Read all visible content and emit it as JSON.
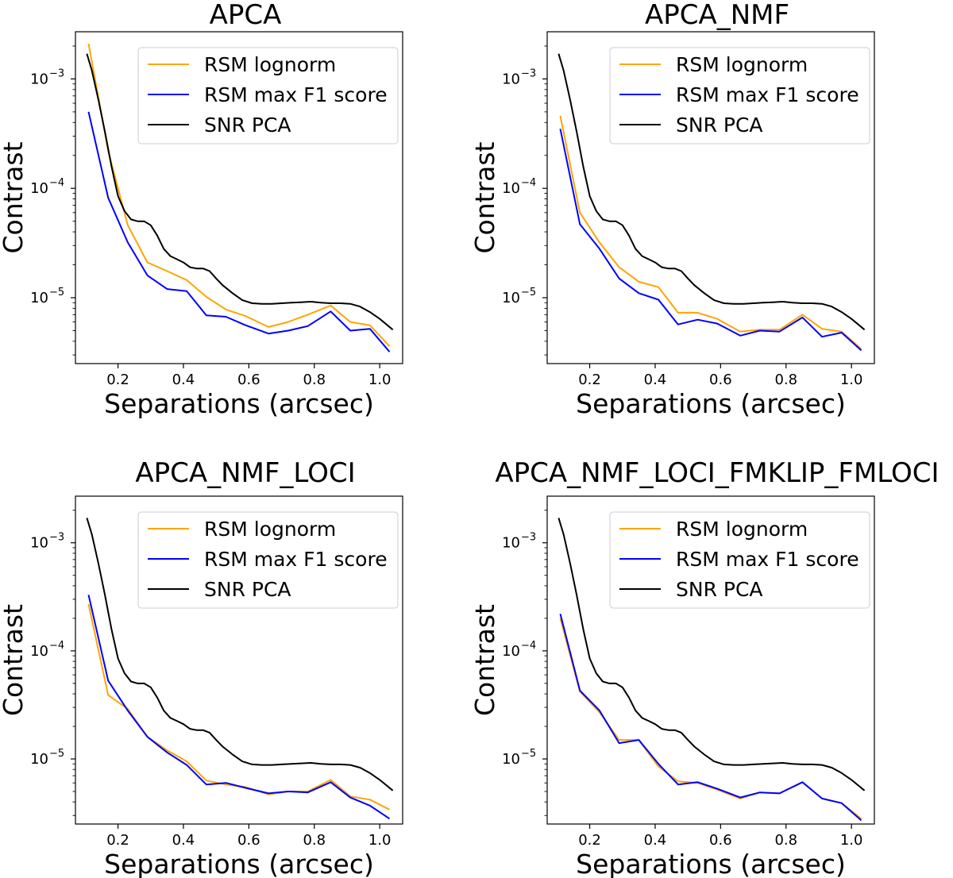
{
  "chart_data": [
    {
      "type": "line",
      "title": "APCA",
      "xlabel": "Separations (arcsec)",
      "ylabel": "Contrast",
      "xlim": [
        0.07,
        1.07
      ],
      "ylim": [
        2.5e-06,
        0.0027
      ],
      "yscale": "log",
      "xticks": [
        0.2,
        0.4,
        0.6,
        0.8,
        1.0
      ],
      "xtick_labels": [
        "0.2",
        "0.4",
        "0.6",
        "0.8",
        "1.0"
      ],
      "yticks": [
        0.001,
        0.0001,
        1e-05
      ],
      "ytick_labels": [
        {
          "base": "10",
          "exp": "−3"
        },
        {
          "base": "10",
          "exp": "−4"
        },
        {
          "base": "10",
          "exp": "−5"
        }
      ],
      "legend_position": "top-right",
      "series": [
        {
          "name": "RSM lognorm",
          "color": "#ffa500",
          "x": [
            0.11,
            0.17,
            0.23,
            0.29,
            0.35,
            0.41,
            0.47,
            0.53,
            0.59,
            0.66,
            0.72,
            0.78,
            0.85,
            0.91,
            0.97,
            1.03
          ],
          "y": [
            0.0021,
            0.00022,
            4.6e-05,
            2.1e-05,
            1.75e-05,
            1.45e-05,
            1.02e-05,
            7.8e-06,
            6.8e-06,
            5.4e-06,
            6e-06,
            7e-06,
            8.5e-06,
            6e-06,
            5.6e-06,
            3.6e-06
          ]
        },
        {
          "name": "RSM max F1 score",
          "color": "#0000ff",
          "x": [
            0.11,
            0.17,
            0.23,
            0.29,
            0.35,
            0.41,
            0.47,
            0.53,
            0.59,
            0.66,
            0.72,
            0.78,
            0.85,
            0.91,
            0.97,
            1.03
          ],
          "y": [
            0.0005,
            8.2e-05,
            3.2e-05,
            1.6e-05,
            1.2e-05,
            1.15e-05,
            6.9e-06,
            6.7e-06,
            5.6e-06,
            4.7e-06,
            5e-06,
            5.5e-06,
            7.5e-06,
            5e-06,
            5.2e-06,
            3.2e-06
          ]
        },
        {
          "name": "SNR PCA",
          "color": "#000000",
          "x": [
            0.105,
            0.12,
            0.14,
            0.16,
            0.18,
            0.2,
            0.22,
            0.24,
            0.26,
            0.28,
            0.3,
            0.32,
            0.34,
            0.36,
            0.38,
            0.4,
            0.42,
            0.44,
            0.46,
            0.48,
            0.5,
            0.52,
            0.55,
            0.58,
            0.61,
            0.64,
            0.67,
            0.7,
            0.73,
            0.76,
            0.79,
            0.82,
            0.85,
            0.88,
            0.91,
            0.94,
            0.97,
            1.0,
            1.04
          ],
          "y": [
            0.0017,
            0.0012,
            0.00065,
            0.00033,
            0.00016,
            8.5e-05,
            6.2e-05,
            5.2e-05,
            5e-05,
            5e-05,
            4.6e-05,
            3.7e-05,
            2.8e-05,
            2.4e-05,
            2.25e-05,
            2.1e-05,
            1.9e-05,
            1.85e-05,
            1.85e-05,
            1.75e-05,
            1.5e-05,
            1.3e-05,
            1.1e-05,
            9.5e-06,
            8.9e-06,
            8.8e-06,
            8.8e-06,
            8.9e-06,
            9e-06,
            9.1e-06,
            9.2e-06,
            9e-06,
            8.9e-06,
            8.9e-06,
            8.8e-06,
            8.3e-06,
            7.4e-06,
            6.4e-06,
            5.1e-06
          ]
        }
      ]
    },
    {
      "type": "line",
      "title": "APCA_NMF",
      "xlabel": "Separations (arcsec)",
      "ylabel": "Contrast",
      "xlim": [
        0.07,
        1.07
      ],
      "ylim": [
        2.5e-06,
        0.0027
      ],
      "yscale": "log",
      "xticks": [
        0.2,
        0.4,
        0.6,
        0.8,
        1.0
      ],
      "xtick_labels": [
        "0.2",
        "0.4",
        "0.6",
        "0.8",
        "1.0"
      ],
      "yticks": [
        0.001,
        0.0001,
        1e-05
      ],
      "ytick_labels": [
        {
          "base": "10",
          "exp": "−3"
        },
        {
          "base": "10",
          "exp": "−4"
        },
        {
          "base": "10",
          "exp": "−5"
        }
      ],
      "legend_position": "top-right",
      "series": [
        {
          "name": "RSM lognorm",
          "color": "#ffa500",
          "x": [
            0.11,
            0.17,
            0.23,
            0.29,
            0.35,
            0.41,
            0.47,
            0.53,
            0.59,
            0.66,
            0.72,
            0.78,
            0.85,
            0.91,
            0.97,
            1.03
          ],
          "y": [
            0.00046,
            6e-05,
            3.2e-05,
            1.9e-05,
            1.4e-05,
            1.25e-05,
            7.3e-06,
            7.3e-06,
            6.4e-06,
            4.9e-06,
            5.1e-06,
            5.1e-06,
            7e-06,
            5.2e-06,
            4.9e-06,
            3.4e-06
          ]
        },
        {
          "name": "RSM max F1 score",
          "color": "#0000ff",
          "x": [
            0.11,
            0.17,
            0.23,
            0.29,
            0.35,
            0.41,
            0.47,
            0.53,
            0.59,
            0.66,
            0.72,
            0.78,
            0.85,
            0.91,
            0.97,
            1.03
          ],
          "y": [
            0.00035,
            4.7e-05,
            2.8e-05,
            1.5e-05,
            1.1e-05,
            9.6e-06,
            5.7e-06,
            6.3e-06,
            5.8e-06,
            4.5e-06,
            5e-06,
            4.9e-06,
            6.6e-06,
            4.4e-06,
            4.8e-06,
            3.3e-06
          ]
        },
        {
          "name": "SNR PCA",
          "color": "#000000",
          "x": [
            0.105,
            0.12,
            0.14,
            0.16,
            0.18,
            0.2,
            0.22,
            0.24,
            0.26,
            0.28,
            0.3,
            0.32,
            0.34,
            0.36,
            0.38,
            0.4,
            0.42,
            0.44,
            0.46,
            0.48,
            0.5,
            0.52,
            0.55,
            0.58,
            0.61,
            0.64,
            0.67,
            0.7,
            0.73,
            0.76,
            0.79,
            0.82,
            0.85,
            0.88,
            0.91,
            0.94,
            0.97,
            1.0,
            1.04
          ],
          "y": [
            0.0017,
            0.0012,
            0.00065,
            0.00033,
            0.00016,
            8.5e-05,
            6.2e-05,
            5.2e-05,
            5e-05,
            5e-05,
            4.6e-05,
            3.7e-05,
            2.8e-05,
            2.4e-05,
            2.25e-05,
            2.1e-05,
            1.9e-05,
            1.85e-05,
            1.85e-05,
            1.75e-05,
            1.5e-05,
            1.3e-05,
            1.1e-05,
            9.5e-06,
            8.9e-06,
            8.8e-06,
            8.8e-06,
            8.9e-06,
            9e-06,
            9.1e-06,
            9.2e-06,
            9e-06,
            8.9e-06,
            8.9e-06,
            8.8e-06,
            8.3e-06,
            7.4e-06,
            6.4e-06,
            5.1e-06
          ]
        }
      ]
    },
    {
      "type": "line",
      "title": "APCA_NMF_LOCI",
      "xlabel": "Separations (arcsec)",
      "ylabel": "Contrast",
      "xlim": [
        0.07,
        1.07
      ],
      "ylim": [
        2.5e-06,
        0.0027
      ],
      "yscale": "log",
      "xticks": [
        0.2,
        0.4,
        0.6,
        0.8,
        1.0
      ],
      "xtick_labels": [
        "0.2",
        "0.4",
        "0.6",
        "0.8",
        "1.0"
      ],
      "yticks": [
        0.001,
        0.0001,
        1e-05
      ],
      "ytick_labels": [
        {
          "base": "10",
          "exp": "−3"
        },
        {
          "base": "10",
          "exp": "−4"
        },
        {
          "base": "10",
          "exp": "−5"
        }
      ],
      "legend_position": "top-right",
      "series": [
        {
          "name": "RSM lognorm",
          "color": "#ffa500",
          "x": [
            0.11,
            0.17,
            0.23,
            0.29,
            0.35,
            0.41,
            0.47,
            0.53,
            0.59,
            0.66,
            0.72,
            0.78,
            0.85,
            0.91,
            0.97,
            1.03
          ],
          "y": [
            0.00027,
            3.9e-05,
            2.9e-05,
            1.6e-05,
            1.2e-05,
            9.5e-06,
            6.3e-06,
            5.8e-06,
            5.5e-06,
            4.7e-06,
            5e-06,
            5e-06,
            6.4e-06,
            4.5e-06,
            4.2e-06,
            3.4e-06
          ]
        },
        {
          "name": "RSM max F1 score",
          "color": "#0000ff",
          "x": [
            0.11,
            0.17,
            0.23,
            0.29,
            0.35,
            0.41,
            0.47,
            0.53,
            0.59,
            0.66,
            0.72,
            0.78,
            0.85,
            0.91,
            0.97,
            1.03
          ],
          "y": [
            0.00033,
            5.3e-05,
            2.8e-05,
            1.6e-05,
            1.15e-05,
            8.8e-06,
            5.8e-06,
            6e-06,
            5.4e-06,
            4.8e-06,
            5e-06,
            4.9e-06,
            6.1e-06,
            4.4e-06,
            3.7e-06,
            2.8e-06
          ]
        },
        {
          "name": "SNR PCA",
          "color": "#000000",
          "x": [
            0.105,
            0.12,
            0.14,
            0.16,
            0.18,
            0.2,
            0.22,
            0.24,
            0.26,
            0.28,
            0.3,
            0.32,
            0.34,
            0.36,
            0.38,
            0.4,
            0.42,
            0.44,
            0.46,
            0.48,
            0.5,
            0.52,
            0.55,
            0.58,
            0.61,
            0.64,
            0.67,
            0.7,
            0.73,
            0.76,
            0.79,
            0.82,
            0.85,
            0.88,
            0.91,
            0.94,
            0.97,
            1.0,
            1.04
          ],
          "y": [
            0.0017,
            0.0012,
            0.00065,
            0.00033,
            0.00016,
            8.5e-05,
            6.2e-05,
            5.2e-05,
            5e-05,
            5e-05,
            4.6e-05,
            3.7e-05,
            2.8e-05,
            2.4e-05,
            2.25e-05,
            2.1e-05,
            1.9e-05,
            1.85e-05,
            1.85e-05,
            1.75e-05,
            1.5e-05,
            1.3e-05,
            1.1e-05,
            9.5e-06,
            8.9e-06,
            8.8e-06,
            8.8e-06,
            8.9e-06,
            9e-06,
            9.1e-06,
            9.2e-06,
            9e-06,
            8.9e-06,
            8.9e-06,
            8.8e-06,
            8.3e-06,
            7.4e-06,
            6.4e-06,
            5.1e-06
          ]
        }
      ]
    },
    {
      "type": "line",
      "title": "APCA_NMF_LOCI_FMKLIP_FMLOCI",
      "xlabel": "Separations (arcsec)",
      "ylabel": "Contrast",
      "xlim": [
        0.07,
        1.07
      ],
      "ylim": [
        2.5e-06,
        0.0027
      ],
      "yscale": "log",
      "xticks": [
        0.2,
        0.4,
        0.6,
        0.8,
        1.0
      ],
      "xtick_labels": [
        "0.2",
        "0.4",
        "0.6",
        "0.8",
        "1.0"
      ],
      "yticks": [
        0.001,
        0.0001,
        1e-05
      ],
      "ytick_labels": [
        {
          "base": "10",
          "exp": "−3"
        },
        {
          "base": "10",
          "exp": "−4"
        },
        {
          "base": "10",
          "exp": "−5"
        }
      ],
      "legend_position": "top-right",
      "series": [
        {
          "name": "RSM lognorm",
          "color": "#ffa500",
          "x": [
            0.11,
            0.17,
            0.23,
            0.29,
            0.35,
            0.41,
            0.47,
            0.53,
            0.59,
            0.66,
            0.72,
            0.78,
            0.85,
            0.91,
            0.97,
            1.03
          ],
          "y": [
            0.0002,
            4.2e-05,
            2.7e-05,
            1.5e-05,
            1.5e-05,
            8.5e-06,
            6.2e-06,
            6e-06,
            5.2e-06,
            4.3e-06,
            4.9e-06,
            4.8e-06,
            6.1e-06,
            4.3e-06,
            3.9e-06,
            2.8e-06
          ]
        },
        {
          "name": "RSM max F1 score",
          "color": "#0000ff",
          "x": [
            0.11,
            0.17,
            0.23,
            0.29,
            0.35,
            0.41,
            0.47,
            0.53,
            0.59,
            0.66,
            0.72,
            0.78,
            0.85,
            0.91,
            0.97,
            1.03
          ],
          "y": [
            0.00022,
            4.3e-05,
            2.8e-05,
            1.4e-05,
            1.5e-05,
            9e-06,
            5.8e-06,
            6.1e-06,
            5.3e-06,
            4.4e-06,
            4.9e-06,
            4.8e-06,
            6.1e-06,
            4.3e-06,
            3.9e-06,
            2.7e-06
          ]
        },
        {
          "name": "SNR PCA",
          "color": "#000000",
          "x": [
            0.105,
            0.12,
            0.14,
            0.16,
            0.18,
            0.2,
            0.22,
            0.24,
            0.26,
            0.28,
            0.3,
            0.32,
            0.34,
            0.36,
            0.38,
            0.4,
            0.42,
            0.44,
            0.46,
            0.48,
            0.5,
            0.52,
            0.55,
            0.58,
            0.61,
            0.64,
            0.67,
            0.7,
            0.73,
            0.76,
            0.79,
            0.82,
            0.85,
            0.88,
            0.91,
            0.94,
            0.97,
            1.0,
            1.04
          ],
          "y": [
            0.0017,
            0.0012,
            0.00065,
            0.00033,
            0.00016,
            8.5e-05,
            6.2e-05,
            5.2e-05,
            5e-05,
            5e-05,
            4.6e-05,
            3.7e-05,
            2.8e-05,
            2.4e-05,
            2.25e-05,
            2.1e-05,
            1.9e-05,
            1.85e-05,
            1.85e-05,
            1.75e-05,
            1.5e-05,
            1.3e-05,
            1.1e-05,
            9.5e-06,
            8.9e-06,
            8.8e-06,
            8.8e-06,
            8.9e-06,
            9e-06,
            9.1e-06,
            9.2e-06,
            9e-06,
            8.9e-06,
            8.9e-06,
            8.8e-06,
            8.3e-06,
            7.4e-06,
            6.4e-06,
            5.1e-06
          ]
        }
      ]
    }
  ]
}
